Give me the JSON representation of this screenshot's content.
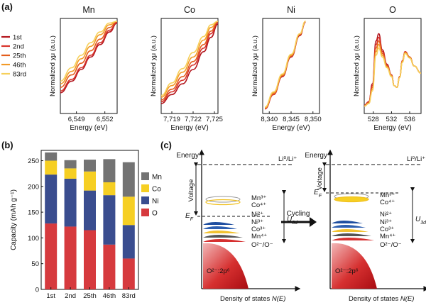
{
  "panels": {
    "a": "(a)",
    "b": "(b)",
    "c": "(c)"
  },
  "xas": {
    "legend_cycles": [
      "1st",
      "2nd",
      "25th",
      "46th",
      "83rd"
    ],
    "cycle_colors": [
      "#b3151d",
      "#d8332a",
      "#e45d1c",
      "#f29a27",
      "#f6d05a"
    ],
    "title_colors": {
      "Mn": "#111111",
      "Co": "#e8b800",
      "Ni": "#1a8fd8",
      "O": "#e03030"
    },
    "ylabel": "Normalized χμ (a.u.)",
    "xlabel": "Energy (eV)"
  },
  "chart_data": [
    {
      "type": "line",
      "title": "Mn",
      "xlabel": "Energy (eV)",
      "ylabel": "Normalized χμ (a.u.)",
      "xlim": [
        6547.3,
        6553.3
      ],
      "xticks": [
        "6,549",
        "6,552"
      ],
      "series": [
        {
          "name": "1st",
          "x": [
            6547.3,
            6548.5,
            6549.5,
            6550.5,
            6551.5,
            6552.5,
            6553.3
          ],
          "y": [
            0.2,
            0.33,
            0.46,
            0.6,
            0.74,
            0.88,
            0.98
          ]
        },
        {
          "name": "2nd",
          "x": [
            6547.3,
            6548.5,
            6549.5,
            6550.5,
            6551.5,
            6552.5,
            6553.3
          ],
          "y": [
            0.22,
            0.35,
            0.48,
            0.62,
            0.76,
            0.9,
            0.99
          ]
        },
        {
          "name": "25th",
          "x": [
            6547.3,
            6548.5,
            6549.5,
            6550.5,
            6551.5,
            6552.5,
            6553.3
          ],
          "y": [
            0.26,
            0.4,
            0.53,
            0.67,
            0.8,
            0.93,
            1.0
          ]
        },
        {
          "name": "46th",
          "x": [
            6547.3,
            6548.5,
            6549.5,
            6550.5,
            6551.5,
            6552.5,
            6553.3
          ],
          "y": [
            0.3,
            0.44,
            0.58,
            0.72,
            0.85,
            0.96,
            1.0
          ]
        },
        {
          "name": "83rd",
          "x": [
            6547.3,
            6548.5,
            6549.5,
            6550.5,
            6551.5,
            6552.5,
            6553.3
          ],
          "y": [
            0.33,
            0.48,
            0.62,
            0.76,
            0.88,
            0.98,
            1.0
          ]
        }
      ]
    },
    {
      "type": "line",
      "title": "Co",
      "xlabel": "Energy (eV)",
      "ylabel": "Normalized χμ (a.u.)",
      "xlim": [
        7717.5,
        7725.5
      ],
      "xticks": [
        "7,719",
        "7,722",
        "7,725"
      ],
      "series": [
        {
          "name": "1st",
          "x": [
            7717.5,
            7719,
            7720.5,
            7722,
            7723.5,
            7724.5,
            7725.5
          ],
          "y": [
            0.08,
            0.18,
            0.3,
            0.46,
            0.66,
            0.82,
            0.97
          ]
        },
        {
          "name": "2nd",
          "x": [
            7717.5,
            7719,
            7720.5,
            7722,
            7723.5,
            7724.5,
            7725.5
          ],
          "y": [
            0.1,
            0.21,
            0.34,
            0.51,
            0.7,
            0.86,
            0.99
          ]
        },
        {
          "name": "25th",
          "x": [
            7717.5,
            7719,
            7720.5,
            7722,
            7723.5,
            7724.5,
            7725.5
          ],
          "y": [
            0.12,
            0.24,
            0.38,
            0.55,
            0.74,
            0.89,
            1.0
          ]
        },
        {
          "name": "46th",
          "x": [
            7717.5,
            7719,
            7720.5,
            7722,
            7723.5,
            7724.5,
            7725.5
          ],
          "y": [
            0.15,
            0.28,
            0.43,
            0.6,
            0.79,
            0.93,
            1.0
          ]
        },
        {
          "name": "83rd",
          "x": [
            7717.5,
            7719,
            7720.5,
            7722,
            7723.5,
            7724.5,
            7725.5
          ],
          "y": [
            0.17,
            0.31,
            0.47,
            0.65,
            0.83,
            0.96,
            1.0
          ]
        }
      ]
    },
    {
      "type": "line",
      "title": "Ni",
      "xlabel": "Energy (eV)",
      "ylabel": "Normalized χμ (a.u.)",
      "xlim": [
        8338.5,
        8351.5
      ],
      "xticks": [
        "8,340",
        "8,345",
        "8,350"
      ],
      "series": [
        {
          "name": "1st",
          "x": [
            8339,
            8341,
            8343,
            8345,
            8347,
            8348.3
          ],
          "y": [
            0.02,
            0.18,
            0.38,
            0.6,
            0.84,
            0.99
          ]
        },
        {
          "name": "2nd",
          "x": [
            8339,
            8341,
            8343,
            8345,
            8347,
            8348.3
          ],
          "y": [
            0.02,
            0.18,
            0.39,
            0.61,
            0.85,
            0.99
          ]
        },
        {
          "name": "25th",
          "x": [
            8339,
            8341,
            8343,
            8345,
            8347,
            8348.3
          ],
          "y": [
            0.03,
            0.19,
            0.39,
            0.61,
            0.85,
            1.0
          ]
        },
        {
          "name": "46th",
          "x": [
            8339,
            8341,
            8343,
            8345,
            8347,
            8348.3
          ],
          "y": [
            0.03,
            0.2,
            0.4,
            0.62,
            0.86,
            1.0
          ]
        },
        {
          "name": "83rd",
          "x": [
            8339,
            8341,
            8343,
            8345,
            8347,
            8348.3
          ],
          "y": [
            0.04,
            0.21,
            0.41,
            0.63,
            0.86,
            1.0
          ]
        }
      ]
    },
    {
      "type": "line",
      "title": "O",
      "xlabel": "Energy (eV)",
      "ylabel": "Normalized χμ (a.u.)",
      "xlim": [
        526,
        538.5
      ],
      "xticks": [
        "528",
        "532",
        "536"
      ],
      "series": [
        {
          "name": "1st",
          "x": [
            526,
            527,
            527.8,
            528.6,
            529.2,
            530,
            531,
            532,
            532.6,
            533.2,
            533.8,
            534.4,
            535,
            536,
            537,
            538.5
          ],
          "y": [
            0.06,
            0.1,
            0.3,
            0.78,
            0.86,
            0.68,
            0.52,
            0.4,
            0.28,
            0.26,
            0.38,
            0.56,
            0.66,
            0.6,
            0.5,
            0.42
          ]
        },
        {
          "name": "2nd",
          "x": [
            526,
            527,
            527.8,
            528.6,
            529.2,
            530,
            531,
            532,
            532.6,
            533.2,
            533.8,
            534.4,
            535,
            536,
            537,
            538.5
          ],
          "y": [
            0.06,
            0.1,
            0.28,
            0.74,
            0.82,
            0.66,
            0.51,
            0.4,
            0.28,
            0.26,
            0.38,
            0.56,
            0.66,
            0.6,
            0.5,
            0.42
          ]
        },
        {
          "name": "25th",
          "x": [
            526,
            527,
            527.8,
            528.6,
            529.2,
            530,
            531,
            532,
            532.6,
            533.2,
            533.8,
            534.4,
            535,
            536,
            537,
            538.5
          ],
          "y": [
            0.05,
            0.09,
            0.26,
            0.7,
            0.78,
            0.64,
            0.5,
            0.39,
            0.28,
            0.26,
            0.38,
            0.55,
            0.65,
            0.6,
            0.5,
            0.42
          ]
        },
        {
          "name": "46th",
          "x": [
            526,
            527,
            527.8,
            528.6,
            529.2,
            530,
            531,
            532,
            532.6,
            533.2,
            533.8,
            534.4,
            535,
            536,
            537,
            538.5
          ],
          "y": [
            0.05,
            0.08,
            0.24,
            0.66,
            0.74,
            0.62,
            0.49,
            0.39,
            0.28,
            0.26,
            0.37,
            0.55,
            0.65,
            0.59,
            0.5,
            0.42
          ]
        },
        {
          "name": "83rd",
          "x": [
            526,
            527,
            527.8,
            528.6,
            529.2,
            530,
            531,
            532,
            532.6,
            533.2,
            533.8,
            534.4,
            535,
            536,
            537,
            538.5
          ],
          "y": [
            0.05,
            0.08,
            0.22,
            0.62,
            0.7,
            0.6,
            0.48,
            0.38,
            0.28,
            0.26,
            0.37,
            0.54,
            0.64,
            0.59,
            0.5,
            0.42
          ]
        }
      ]
    },
    {
      "type": "bar",
      "stacked": true,
      "categories": [
        "1st",
        "2nd",
        "25th",
        "46th",
        "83rd"
      ],
      "ylabel": "Capacity (mAh g⁻¹)",
      "ylim": [
        0,
        270
      ],
      "yticks": [
        "0",
        "50",
        "100",
        "150",
        "200",
        "250"
      ],
      "legend_position": "right",
      "series": [
        {
          "name": "O",
          "color": "#d63a3e",
          "values": [
            128,
            122,
            115,
            87,
            60
          ]
        },
        {
          "name": "Ni",
          "color": "#3a4d8f",
          "values": [
            95,
            93,
            77,
            96,
            65
          ]
        },
        {
          "name": "Co",
          "color": "#f6cf23",
          "values": [
            27,
            20,
            37,
            25,
            55
          ]
        },
        {
          "name": "Mn",
          "color": "#737373",
          "values": [
            16,
            16,
            23,
            45,
            67
          ]
        }
      ]
    }
  ],
  "diagram": {
    "energy": "Energy",
    "li_ref": "Li⁰/Li⁺",
    "voltage": "Voltage",
    "ef": "E",
    "ef_sub": "F",
    "u3d": "U",
    "u3d_sub": "3d",
    "cycling": "Cycling",
    "dos_label": "Density of states",
    "dos_n": "N(E)",
    "o_band": "O²⁻:2p⁶",
    "levels_left": [
      {
        "text": "Mn³⁺",
        "color": "#111111"
      },
      {
        "text": "Co⁴⁺",
        "color": "#e8b800"
      },
      {
        "text": "Ni²⁺",
        "color": "#1f5fb4"
      },
      {
        "text": "Ni³⁺",
        "color": "#1f5fb4"
      },
      {
        "text": "Co³⁺",
        "color": "#e8b800"
      },
      {
        "text": "Mn⁴⁺",
        "color": "#111111"
      },
      {
        "text": "O²⁻/O⁻",
        "color": "#d63030"
      }
    ],
    "levels_right": [
      {
        "text": "Mn³⁺",
        "color": "#111111"
      },
      {
        "text": "Co⁴⁺",
        "color": "#e8b800"
      },
      {
        "text": "Ni²⁺",
        "color": "#1f5fb4"
      },
      {
        "text": "Ni³⁺",
        "color": "#1f5fb4"
      },
      {
        "text": "Co³⁺",
        "color": "#e8b800"
      },
      {
        "text": "Mn⁴⁺",
        "color": "#111111"
      },
      {
        "text": "O²⁻/O⁻",
        "color": "#d63030"
      }
    ]
  }
}
